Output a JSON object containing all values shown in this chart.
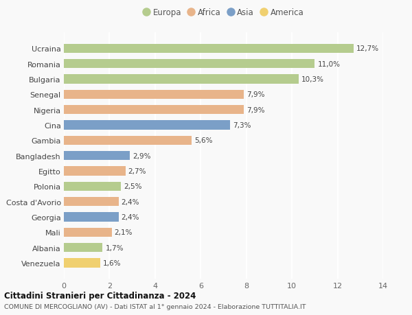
{
  "categories": [
    "Venezuela",
    "Albania",
    "Mali",
    "Georgia",
    "Costa d'Avorio",
    "Polonia",
    "Egitto",
    "Bangladesh",
    "Gambia",
    "Cina",
    "Nigeria",
    "Senegal",
    "Bulgaria",
    "Romania",
    "Ucraina"
  ],
  "values": [
    1.6,
    1.7,
    2.1,
    2.4,
    2.4,
    2.5,
    2.7,
    2.9,
    5.6,
    7.3,
    7.9,
    7.9,
    10.3,
    11.0,
    12.7
  ],
  "continents": [
    "America",
    "Europa",
    "Africa",
    "Asia",
    "Africa",
    "Europa",
    "Africa",
    "Asia",
    "Africa",
    "Asia",
    "Africa",
    "Africa",
    "Europa",
    "Europa",
    "Europa"
  ],
  "colors": {
    "Europa": "#b5cc8e",
    "Africa": "#e8b48a",
    "Asia": "#7b9fc7",
    "America": "#f0d070"
  },
  "legend_order": [
    "Europa",
    "Africa",
    "Asia",
    "America"
  ],
  "title": "Cittadini Stranieri per Cittadinanza - 2024",
  "subtitle": "COMUNE DI MERCOGLIANO (AV) - Dati ISTAT al 1° gennaio 2024 - Elaborazione TUTTITALIA.IT",
  "xlim": [
    0,
    14
  ],
  "xticks": [
    0,
    2,
    4,
    6,
    8,
    10,
    12,
    14
  ],
  "bg_color": "#f9f9f9",
  "grid_color": "#ffffff",
  "bar_height": 0.6
}
